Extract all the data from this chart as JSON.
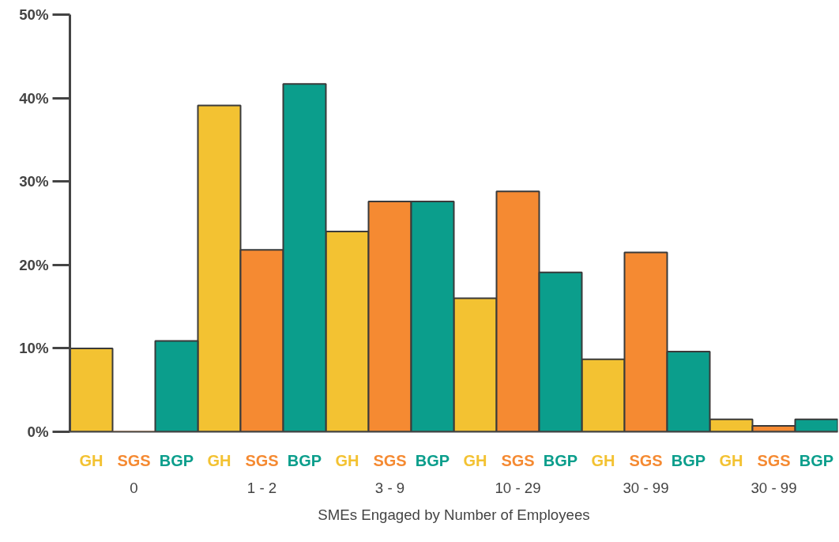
{
  "chart_data": {
    "type": "bar",
    "xlabel": "SMEs Engaged by Number of Employees",
    "categories": [
      "0",
      "1 - 2",
      "3 - 9",
      "10 - 29",
      "30 - 99",
      "30 - 99"
    ],
    "series": [
      {
        "name": "GH",
        "color": "#f3c232",
        "values": [
          10,
          39.1,
          24,
          16,
          8.7,
          1.5
        ]
      },
      {
        "name": "SGS",
        "color": "#f58a32",
        "values": [
          0,
          21.8,
          27.6,
          28.8,
          21.5,
          0.7
        ]
      },
      {
        "name": "BGP",
        "color": "#0b9e8c",
        "values": [
          10.9,
          41.7,
          27.6,
          19.1,
          9.6,
          1.5
        ]
      }
    ],
    "ylim": [
      0,
      50
    ],
    "yticks": [
      {
        "value": 0,
        "label": "0%"
      },
      {
        "value": 10,
        "label": "10%"
      },
      {
        "value": 20,
        "label": "20%"
      },
      {
        "value": 30,
        "label": "30%"
      },
      {
        "value": 40,
        "label": "40%"
      },
      {
        "value": 50,
        "label": "50%"
      }
    ],
    "grid": false,
    "legend": false
  }
}
